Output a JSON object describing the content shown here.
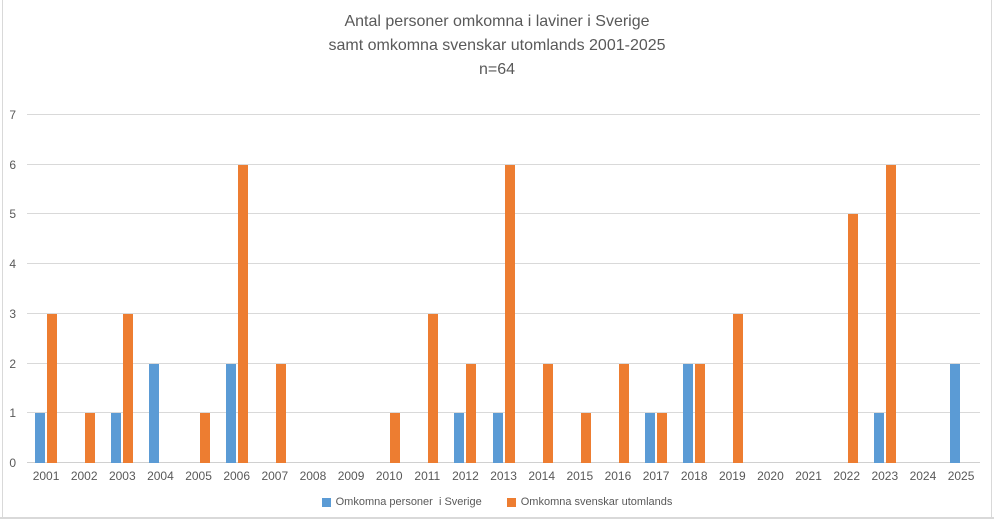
{
  "title": {
    "line1": "Antal personer omkomna i laviner i Sverige",
    "line2": "samt omkomna svenskar utomlands 2001-2025",
    "line3": "n=64"
  },
  "chart_data": {
    "type": "bar",
    "title": "Antal personer omkomna i laviner i Sverige samt omkomna svenskar utomlands 2001-2025 n=64",
    "n_total": 64,
    "categories": [
      "2001",
      "2002",
      "2003",
      "2004",
      "2005",
      "2006",
      "2007",
      "2008",
      "2009",
      "2010",
      "2011",
      "2012",
      "2013",
      "2014",
      "2015",
      "2016",
      "2017",
      "2018",
      "2019",
      "2020",
      "2021",
      "2022",
      "2023",
      "2024",
      "2025"
    ],
    "series": [
      {
        "name": "Omkomna personer  i Sverige",
        "color": "#5B9BD5",
        "values": [
          1,
          0,
          1,
          2,
          0,
          2,
          0,
          0,
          0,
          0,
          0,
          1,
          1,
          0,
          0,
          0,
          1,
          2,
          0,
          0,
          0,
          0,
          1,
          0,
          2
        ]
      },
      {
        "name": "Omkomna svenskar utomlands",
        "color": "#ED7D31",
        "values": [
          3,
          1,
          3,
          0,
          1,
          6,
          2,
          0,
          0,
          1,
          3,
          2,
          6,
          2,
          1,
          2,
          1,
          2,
          3,
          0,
          0,
          5,
          6,
          0,
          0
        ]
      }
    ],
    "xlabel": "",
    "ylabel": "",
    "ylim": [
      0,
      7
    ],
    "yticks": [
      0,
      1,
      2,
      3,
      4,
      5,
      6,
      7
    ],
    "grid": true,
    "legend_position": "bottom"
  },
  "colors": {
    "series_sverige": "#5B9BD5",
    "series_utomlands": "#ED7D31",
    "text": "#595959",
    "gridline": "#D9D9D9",
    "frame": "#D9D9D9",
    "background": "#FFFFFF"
  }
}
